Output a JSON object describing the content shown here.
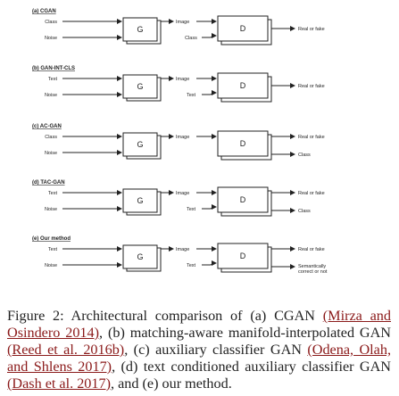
{
  "sections": [
    {
      "title": "(a) CGAN",
      "top_input": "Class",
      "bottom_input": "Noise",
      "g": "G",
      "g_out": "Image",
      "d_in2": "Class",
      "d": "D",
      "outputs": [
        "Real or fake"
      ]
    },
    {
      "title": "(b) GAN-INT-CLS",
      "top_input": "Text",
      "bottom_input": "Noise",
      "g": "G",
      "g_out": "Image",
      "d_in2": "Text",
      "d": "D",
      "outputs": [
        "Real or fake"
      ]
    },
    {
      "title": "(c) AC-GAN",
      "top_input": "Class",
      "bottom_input": "Noise",
      "g": "G",
      "g_out": "Image",
      "d_in2": "",
      "d": "D",
      "outputs": [
        "Real or fake",
        "Class"
      ]
    },
    {
      "title": "(d) TAC-GAN",
      "top_input": "Text",
      "bottom_input": "Noise",
      "g": "G",
      "g_out": "Image",
      "d_in2": "Text",
      "d": "D",
      "outputs": [
        "Real or fake",
        "Class"
      ]
    },
    {
      "title": "(e) Our method",
      "top_input": "Text",
      "bottom_input": "Noise",
      "g": "G",
      "g_out": "Image",
      "d_in2": "Text",
      "d": "D",
      "outputs": [
        "Real or fake",
        "Semantically correct or not"
      ]
    }
  ],
  "caption": {
    "t1": "Figure 2: Architectural comparison of (a) CGAN ",
    "c1": "(Mirza and Osindero 2014)",
    "t2": ", (b) matching-aware manifold-interpolated GAN ",
    "c2": "(Reed et al. 2016b)",
    "t3": ", (c) auxiliary classifier GAN ",
    "c3": "(Odena, Olah, and Shlens 2017)",
    "t4": ", (d) text conditioned auxiliary classifier GAN ",
    "c4": "(Dash et al. 2017)",
    "t5": ", and (e) our method."
  }
}
